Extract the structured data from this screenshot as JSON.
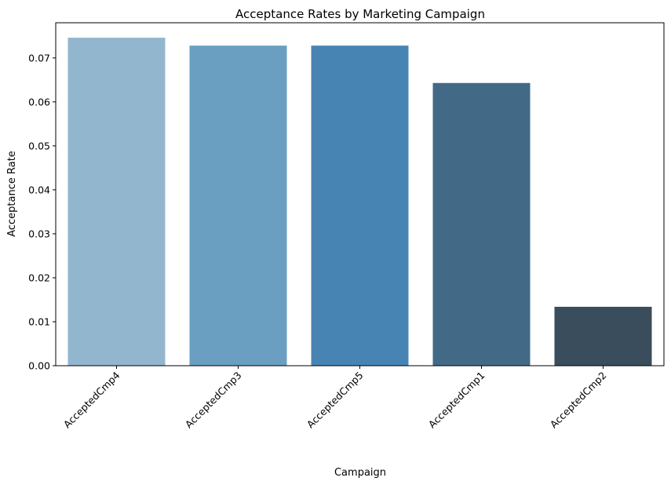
{
  "chart_data": {
    "type": "bar",
    "title": "Acceptance Rates by Marketing Campaign",
    "xlabel": "Campaign",
    "ylabel": "Acceptance Rate",
    "categories": [
      "AcceptedCmp4",
      "AcceptedCmp3",
      "AcceptedCmp5",
      "AcceptedCmp1",
      "AcceptedCmp2"
    ],
    "values": [
      0.0746,
      0.0728,
      0.0728,
      0.0643,
      0.0134
    ],
    "colors": [
      "#93b6cf",
      "#6a9fc1",
      "#4884b3",
      "#426a87",
      "#3a4d5c"
    ],
    "ylim": [
      0,
      0.078
    ],
    "yticks": [
      "0.00",
      "0.01",
      "0.02",
      "0.03",
      "0.04",
      "0.05",
      "0.06",
      "0.07"
    ],
    "ytick_values": [
      0,
      0.01,
      0.02,
      0.03,
      0.04,
      0.05,
      0.06,
      0.07
    ],
    "grid": false,
    "legend": "none",
    "xtick_rotation_deg": 45
  }
}
